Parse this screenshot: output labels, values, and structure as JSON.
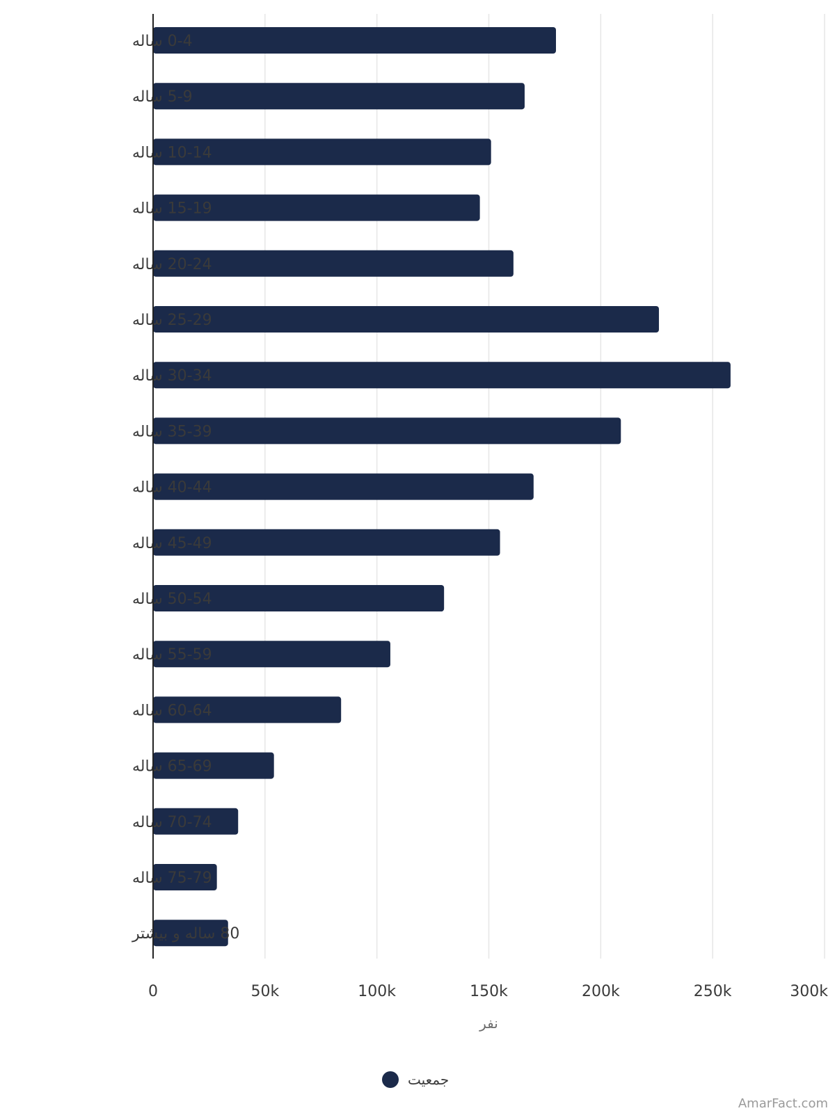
{
  "chart_data": {
    "type": "bar",
    "orientation": "horizontal",
    "categories": [
      "0-4 ساله",
      "5-9 ساله",
      "10-14 ساله",
      "15-19 ساله",
      "20-24 ساله",
      "25-29 ساله",
      "30-34 ساله",
      "35-39 ساله",
      "40-44 ساله",
      "45-49 ساله",
      "50-54 ساله",
      "55-59 ساله",
      "60-64 ساله",
      "65-69 ساله",
      "70-74 ساله",
      "75-79 ساله",
      "80 ساله و بیشتر"
    ],
    "series": [
      {
        "name": "جمعیت",
        "color": "#1b2a4a",
        "values": [
          180000,
          166000,
          151000,
          146000,
          161000,
          226000,
          258000,
          209000,
          170000,
          155000,
          130000,
          106000,
          84000,
          54000,
          38000,
          28500,
          33500
        ]
      }
    ],
    "xlabel": "نفر",
    "ylabel": "",
    "xlim": [
      0,
      300000
    ],
    "xticks": [
      "0",
      "50k",
      "100k",
      "150k",
      "200k",
      "250k",
      "300k"
    ],
    "grid": true,
    "legend_position": "bottom-center"
  },
  "watermark": "AmarFact.com",
  "colors": {
    "bar": "#1b2a4a",
    "grid": "#e6e6e6",
    "axis": "#222222"
  }
}
